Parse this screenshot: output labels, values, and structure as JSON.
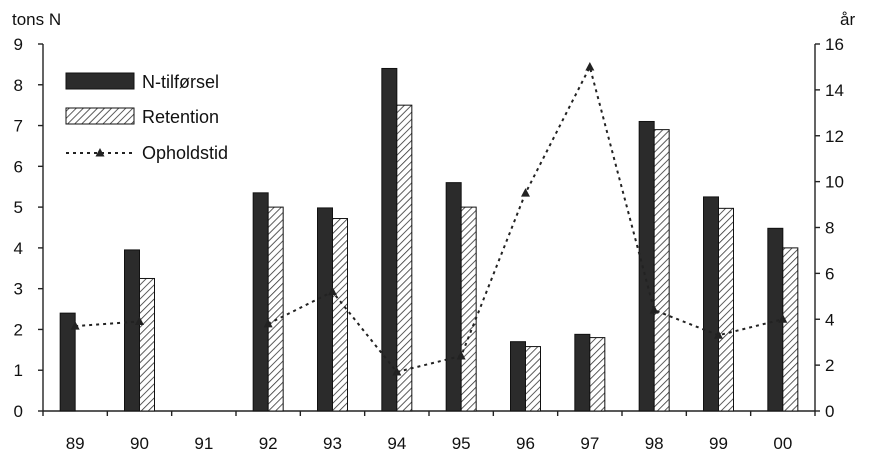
{
  "chart_data": {
    "type": "bar",
    "categories": [
      "89",
      "90",
      "91",
      "92",
      "93",
      "94",
      "95",
      "96",
      "97",
      "98",
      "99",
      "00"
    ],
    "series": [
      {
        "name": "N-tilførsel",
        "kind": "bar",
        "axis": "left",
        "fill": "solid",
        "color": "#2b2b2b",
        "values": [
          2.4,
          3.95,
          null,
          5.35,
          4.98,
          8.4,
          5.6,
          1.7,
          1.88,
          7.1,
          5.25,
          4.48
        ]
      },
      {
        "name": "Retention",
        "kind": "bar",
        "axis": "left",
        "fill": "hatched",
        "color": "#333333",
        "values": [
          null,
          3.25,
          null,
          5.0,
          4.72,
          7.5,
          5.0,
          1.58,
          1.8,
          6.9,
          4.97,
          4.0
        ]
      },
      {
        "name": "Opholdstid",
        "kind": "line",
        "axis": "right",
        "line_style": "dotted",
        "marker": "triangle",
        "color": "#222222",
        "values": [
          3.7,
          3.9,
          null,
          3.8,
          5.2,
          1.7,
          2.4,
          9.5,
          15.0,
          4.4,
          3.3,
          4.0
        ]
      }
    ],
    "ylabel_left": "tons N",
    "ylabel_right": "år",
    "ylim_left": [
      0,
      9
    ],
    "ylim_right": [
      0,
      16
    ],
    "yticks_left": [
      "0",
      "1",
      "2",
      "3",
      "4",
      "5",
      "6",
      "7",
      "8",
      "9"
    ],
    "yticks_right": [
      "0",
      "2",
      "4",
      "6",
      "8",
      "10",
      "12",
      "14",
      "16"
    ],
    "grid": false,
    "legend": "top-left"
  }
}
